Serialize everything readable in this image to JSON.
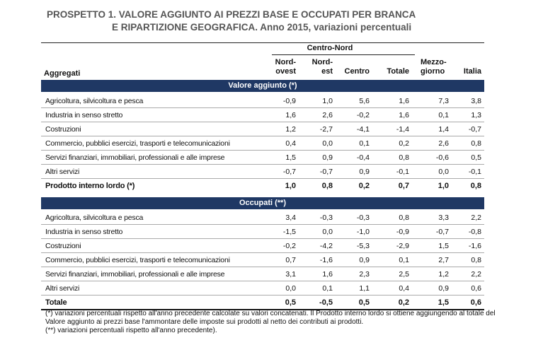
{
  "title": {
    "line1": "PROSPETTO 1. VALORE AGGIUNTO AI PREZZI BASE E OCCUPATI PER BRANCA",
    "line2": "E RIPARTIZIONE GEOGRAFICA. Anno 2015, variazioni percentuali"
  },
  "header": {
    "group": "Centro-Nord",
    "row_label": "Aggregati",
    "columns": [
      {
        "line1": "Nord-",
        "line2": "ovest"
      },
      {
        "line1": "Nord-",
        "line2": "est"
      },
      {
        "line1": "",
        "line2": "Centro"
      },
      {
        "line1": "",
        "line2": "Totale"
      },
      {
        "line1": "Mezzo-",
        "line2": "giorno"
      },
      {
        "line1": "",
        "line2": "Italia"
      }
    ]
  },
  "sections": [
    {
      "title": "Valore aggiunto (*)",
      "rows": [
        {
          "label": "Agricoltura, silvicoltura e pesca",
          "values": [
            "-0,9",
            "1,0",
            "5,6",
            "1,6",
            "7,3",
            "3,8"
          ]
        },
        {
          "label": "Industria in senso stretto",
          "values": [
            "1,6",
            "2,6",
            "-0,2",
            "1,6",
            "0,1",
            "1,3"
          ]
        },
        {
          "label": "Costruzioni",
          "values": [
            "1,2",
            "-2,7",
            "-4,1",
            "-1,4",
            "1,4",
            "-0,7"
          ]
        },
        {
          "label": "Commercio, pubblici esercizi, trasporti e telecomunicazioni",
          "values": [
            "0,4",
            "0,0",
            "0,1",
            "0,2",
            "2,6",
            "0,8"
          ]
        },
        {
          "label": "Servizi finanziari, immobiliari, professionali e alle imprese",
          "values": [
            "1,5",
            "0,9",
            "-0,4",
            "0,8",
            "-0,6",
            "0,5"
          ]
        },
        {
          "label": "Altri servizi",
          "values": [
            "-0,7",
            "-0,7",
            "0,9",
            "-0,1",
            "0,0",
            "-0,1"
          ]
        }
      ],
      "total": {
        "label": "Prodotto interno lordo (*)",
        "values": [
          "1,0",
          "0,8",
          "0,2",
          "0,7",
          "1,0",
          "0,8"
        ]
      }
    },
    {
      "title": "Occupati (**)",
      "rows": [
        {
          "label": "Agricoltura, silvicoltura e pesca",
          "values": [
            "3,4",
            "-0,3",
            "-0,3",
            "0,8",
            "3,3",
            "2,2"
          ]
        },
        {
          "label": "Industria in senso stretto",
          "values": [
            "-1,5",
            "0,0",
            "-1,0",
            "-0,9",
            "-0,7",
            "-0,8"
          ]
        },
        {
          "label": "Costruzioni",
          "values": [
            "-0,2",
            "-4,2",
            "-5,3",
            "-2,9",
            "1,5",
            "-1,6"
          ]
        },
        {
          "label": "Commercio, pubblici esercizi, trasporti e telecomunicazioni",
          "values": [
            "0,7",
            "-1,6",
            "0,9",
            "0,1",
            "2,7",
            "0,8"
          ]
        },
        {
          "label": "Servizi finanziari, immobiliari, professionali e alle imprese",
          "values": [
            "3,1",
            "1,6",
            "2,3",
            "2,5",
            "1,2",
            "2,2"
          ]
        },
        {
          "label": "Altri servizi",
          "values": [
            "0,0",
            "0,1",
            "1,1",
            "0,4",
            "0,9",
            "0,6"
          ]
        }
      ],
      "total": {
        "label": "Totale",
        "values": [
          "0,5",
          "-0,5",
          "0,5",
          "0,2",
          "1,5",
          "0,6"
        ]
      }
    }
  ],
  "notes": [
    "(*) variazioni percentuali rispetto all'anno precedente calcolate su valori concatenati. Il Prodotto interno lordo si ottiene aggiungendo al totale del Valore aggiunto ai prezzi base l'ammontare delle imposte sui prodotti al netto dei contributi ai prodotti.",
    "(**) variazioni percentuali rispetto all'anno precedente)."
  ],
  "colors": {
    "band": "#1f3864",
    "title": "#555555"
  }
}
